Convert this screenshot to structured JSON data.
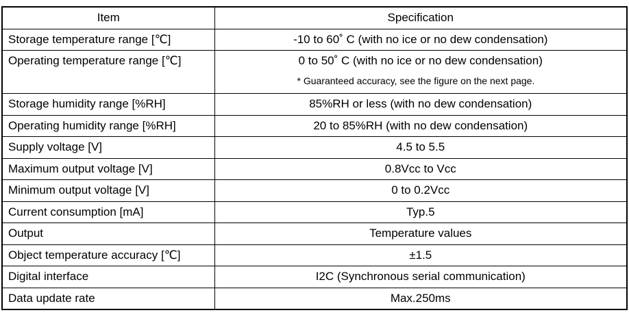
{
  "table": {
    "headers": {
      "item": "Item",
      "spec": "Specification"
    },
    "rows": [
      {
        "item": "Storage temperature range [℃]",
        "spec": "-10 to 60˚ C (with no ice or no dew condensation)"
      },
      {
        "item": "Operating temperature range [℃]",
        "spec": "0 to 50˚ C  (with no ice or no dew condensation)",
        "note": "*  Guaranteed accuracy, see the figure on the next page."
      },
      {
        "item": "Storage humidity  range [%RH]",
        "spec": "85%RH or less (with no dew condensation)"
      },
      {
        "item": "Operating humidity  range [%RH]",
        "spec": "20 to 85%RH (with no dew condensation)"
      },
      {
        "item": "Supply voltage [V]",
        "spec": "4.5 to 5.5"
      },
      {
        "item": "Maximum output voltage [V]",
        "spec": "0.8Vcc to Vcc"
      },
      {
        "item": "Minimum output voltage [V]",
        "spec": "0 to 0.2Vcc"
      },
      {
        "item": "Current consumption  [mA]",
        "spec": "Typ.5"
      },
      {
        "item": "Output",
        "spec": "Temperature values"
      },
      {
        "item": "Object temperature accuracy [℃]",
        "spec": "±1.5"
      },
      {
        "item": "Digital interface",
        "spec": "I2C   (Synchronous serial communication)"
      },
      {
        "item": "Data update rate",
        "spec": "Max.250ms"
      }
    ]
  }
}
